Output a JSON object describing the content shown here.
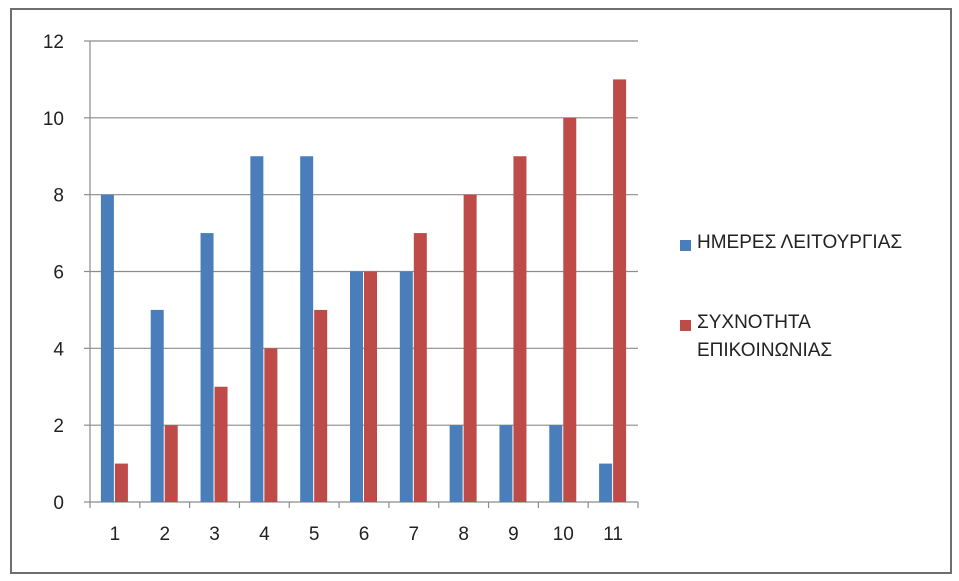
{
  "chart_data": {
    "type": "bar",
    "categories": [
      "1",
      "2",
      "3",
      "4",
      "5",
      "6",
      "7",
      "8",
      "9",
      "10",
      "11"
    ],
    "series": [
      {
        "name": "ΗΜΕΡΕΣ ΛΕΙΤΟΥΡΓΙΑΣ",
        "color": "#4a7ebb",
        "values": [
          8,
          5,
          7,
          9,
          9,
          6,
          6,
          2,
          2,
          2,
          1
        ]
      },
      {
        "name": "ΣΥΧΝΟΤΗΤΑ ΕΠΙΚΟΙΝΩΝΙΑΣ",
        "color": "#be4b48",
        "values": [
          1,
          2,
          3,
          4,
          5,
          6,
          7,
          8,
          9,
          10,
          11
        ]
      }
    ],
    "ylim": [
      0,
      12
    ],
    "yticks": [
      0,
      2,
      4,
      6,
      8,
      10,
      12
    ],
    "grid": true,
    "legend": "right",
    "title": "",
    "xlabel": "",
    "ylabel": ""
  }
}
